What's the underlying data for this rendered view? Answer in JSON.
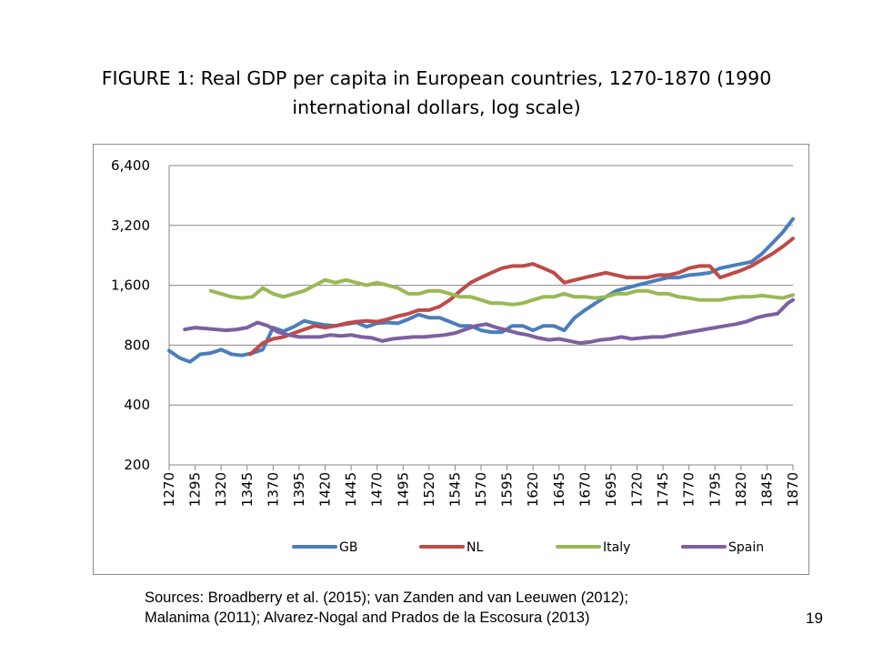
{
  "slide": {
    "title_line1": "FIGURE 1: Real GDP per capita in European countries, 1270-1870 (1990",
    "title_line2": "international dollars, log scale)",
    "sources_line1": "Sources: Broadberry et al. (2015); van Zanden and van Leeuwen (2012);",
    "sources_line2": "Malanima (2011); Alvarez-Nogal and Prados de la Escosura (2013)",
    "page_number": "19"
  },
  "chart_data": {
    "type": "line",
    "title": "FIGURE 1: Real GDP per capita in European countries, 1270-1870 (1990 international dollars, log scale)",
    "xlabel": "",
    "ylabel": "",
    "y_scale": "log2",
    "ylim": [
      200,
      6400
    ],
    "y_ticks": [
      200,
      400,
      800,
      1600,
      3200,
      6400
    ],
    "y_tick_labels": [
      "200",
      "400",
      "800",
      "1,600",
      "3,200",
      "6,400"
    ],
    "xlim": [
      1270,
      1870
    ],
    "x_ticks": [
      1270,
      1295,
      1320,
      1345,
      1370,
      1395,
      1420,
      1445,
      1470,
      1495,
      1520,
      1545,
      1570,
      1595,
      1620,
      1645,
      1670,
      1695,
      1720,
      1745,
      1770,
      1795,
      1820,
      1845,
      1870
    ],
    "x_tick_labels": [
      "1270",
      "1295",
      "1320",
      "1345",
      "1370",
      "1395",
      "1420",
      "1445",
      "1470",
      "1495",
      "1520",
      "1545",
      "1570",
      "1595",
      "1620",
      "1645",
      "1670",
      "1695",
      "1720",
      "1745",
      "1770",
      "1795",
      "1820",
      "1845",
      "1870"
    ],
    "grid": "horizontal",
    "legend_position": "bottom",
    "series": [
      {
        "name": "GB",
        "color": "#4a7ebb",
        "x": [
          1270,
          1280,
          1290,
          1300,
          1310,
          1320,
          1330,
          1340,
          1350,
          1360,
          1370,
          1380,
          1390,
          1400,
          1410,
          1420,
          1430,
          1440,
          1450,
          1460,
          1470,
          1480,
          1490,
          1500,
          1510,
          1520,
          1530,
          1540,
          1550,
          1560,
          1570,
          1580,
          1590,
          1600,
          1610,
          1620,
          1630,
          1640,
          1650,
          1660,
          1670,
          1680,
          1690,
          1700,
          1710,
          1720,
          1730,
          1740,
          1750,
          1760,
          1770,
          1780,
          1790,
          1800,
          1810,
          1820,
          1830,
          1840,
          1850,
          1860,
          1870
        ],
        "values": [
          750,
          690,
          660,
          720,
          730,
          760,
          720,
          710,
          730,
          760,
          980,
          940,
          990,
          1060,
          1030,
          1010,
          1000,
          1020,
          1040,
          990,
          1030,
          1040,
          1030,
          1080,
          1140,
          1100,
          1100,
          1050,
          1000,
          1000,
          950,
          930,
          930,
          1000,
          1000,
          950,
          1000,
          1000,
          950,
          1100,
          1200,
          1300,
          1400,
          1500,
          1550,
          1600,
          1650,
          1700,
          1750,
          1750,
          1800,
          1820,
          1850,
          1950,
          2000,
          2050,
          2100,
          2300,
          2600,
          2950,
          3450
        ]
      },
      {
        "name": "NL",
        "color": "#be4b48",
        "x": [
          1348,
          1360,
          1370,
          1380,
          1390,
          1400,
          1410,
          1420,
          1430,
          1440,
          1450,
          1460,
          1470,
          1480,
          1490,
          1500,
          1510,
          1520,
          1530,
          1540,
          1550,
          1560,
          1570,
          1580,
          1590,
          1600,
          1610,
          1620,
          1630,
          1640,
          1650,
          1660,
          1670,
          1680,
          1690,
          1700,
          1710,
          1720,
          1730,
          1740,
          1750,
          1760,
          1770,
          1780,
          1790,
          1800,
          1807,
          1820,
          1830,
          1840,
          1850,
          1860,
          1870
        ],
        "values": [
          720,
          820,
          860,
          880,
          920,
          960,
          1000,
          980,
          1000,
          1030,
          1050,
          1060,
          1050,
          1080,
          1120,
          1150,
          1200,
          1200,
          1250,
          1350,
          1500,
          1650,
          1750,
          1850,
          1950,
          2000,
          2000,
          2050,
          1950,
          1850,
          1650,
          1700,
          1750,
          1800,
          1850,
          1800,
          1750,
          1750,
          1750,
          1800,
          1800,
          1850,
          1950,
          2000,
          2000,
          1750,
          1800,
          1900,
          2000,
          2150,
          2300,
          2500,
          2750
        ]
      },
      {
        "name": "Italy",
        "color": "#98b954",
        "x": [
          1310,
          1320,
          1330,
          1340,
          1350,
          1360,
          1370,
          1380,
          1390,
          1400,
          1410,
          1420,
          1430,
          1440,
          1450,
          1460,
          1470,
          1480,
          1490,
          1500,
          1510,
          1520,
          1530,
          1540,
          1550,
          1560,
          1570,
          1580,
          1590,
          1600,
          1610,
          1620,
          1630,
          1640,
          1650,
          1660,
          1670,
          1680,
          1690,
          1700,
          1710,
          1720,
          1730,
          1740,
          1750,
          1760,
          1770,
          1780,
          1790,
          1800,
          1810,
          1820,
          1830,
          1840,
          1850,
          1860,
          1870
        ],
        "values": [
          1500,
          1450,
          1400,
          1380,
          1400,
          1550,
          1450,
          1400,
          1450,
          1500,
          1600,
          1700,
          1650,
          1700,
          1650,
          1600,
          1650,
          1600,
          1550,
          1450,
          1450,
          1500,
          1500,
          1450,
          1400,
          1400,
          1350,
          1300,
          1300,
          1280,
          1300,
          1350,
          1400,
          1400,
          1450,
          1400,
          1400,
          1380,
          1400,
          1450,
          1450,
          1500,
          1500,
          1450,
          1450,
          1400,
          1380,
          1350,
          1350,
          1350,
          1380,
          1400,
          1400,
          1420,
          1400,
          1380,
          1430
        ]
      },
      {
        "name": "Spain",
        "color": "#7d60a0",
        "x": [
          1285,
          1295,
          1305,
          1315,
          1325,
          1335,
          1345,
          1355,
          1365,
          1375,
          1385,
          1395,
          1405,
          1415,
          1425,
          1435,
          1445,
          1455,
          1465,
          1475,
          1485,
          1495,
          1505,
          1515,
          1525,
          1535,
          1545,
          1555,
          1565,
          1575,
          1585,
          1595,
          1605,
          1615,
          1625,
          1635,
          1645,
          1655,
          1665,
          1675,
          1685,
          1695,
          1705,
          1715,
          1725,
          1735,
          1745,
          1755,
          1765,
          1775,
          1785,
          1795,
          1805,
          1815,
          1825,
          1835,
          1845,
          1855,
          1865,
          1870
        ],
        "values": [
          960,
          980,
          970,
          960,
          950,
          960,
          980,
          1040,
          1000,
          930,
          900,
          880,
          880,
          880,
          900,
          890,
          900,
          880,
          870,
          840,
          860,
          870,
          880,
          880,
          890,
          900,
          920,
          960,
          1000,
          1020,
          980,
          950,
          920,
          900,
          870,
          850,
          860,
          840,
          820,
          830,
          850,
          860,
          880,
          860,
          870,
          880,
          880,
          900,
          920,
          940,
          960,
          980,
          1000,
          1020,
          1050,
          1100,
          1130,
          1150,
          1300,
          1350
        ]
      }
    ]
  }
}
